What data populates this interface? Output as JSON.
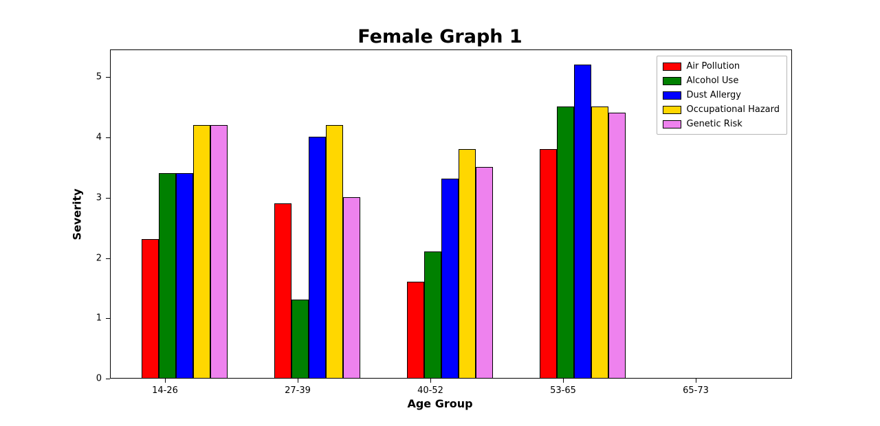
{
  "title": "Female Graph 1",
  "chart_data": {
    "type": "bar",
    "title": "Female Graph 1",
    "xlabel": "Age Group",
    "ylabel": "Severity",
    "categories": [
      "14-26",
      "27-39",
      "40-52",
      "53-65",
      "65-73"
    ],
    "series": [
      {
        "name": "Air Pollution",
        "color": "#ff0000",
        "values": [
          2.3,
          2.9,
          1.6,
          3.8,
          0
        ]
      },
      {
        "name": "Alcohol Use",
        "color": "#008000",
        "values": [
          3.4,
          1.3,
          2.1,
          4.5,
          0
        ]
      },
      {
        "name": "Dust Allergy",
        "color": "#0000ff",
        "values": [
          3.4,
          4.0,
          3.3,
          5.2,
          0
        ]
      },
      {
        "name": "Occupational Hazard",
        "color": "#ffd700",
        "values": [
          4.2,
          4.2,
          3.8,
          4.5,
          0
        ]
      },
      {
        "name": "Genetic Risk",
        "color": "#ee82ee",
        "values": [
          4.2,
          3.0,
          3.5,
          4.4,
          0
        ]
      }
    ],
    "y_ticks": [
      0,
      1,
      2,
      3,
      4,
      5
    ],
    "ylim": [
      0,
      5.46
    ],
    "grid": false,
    "legend_position": "upper right",
    "bar_edge_color": "#000000"
  }
}
